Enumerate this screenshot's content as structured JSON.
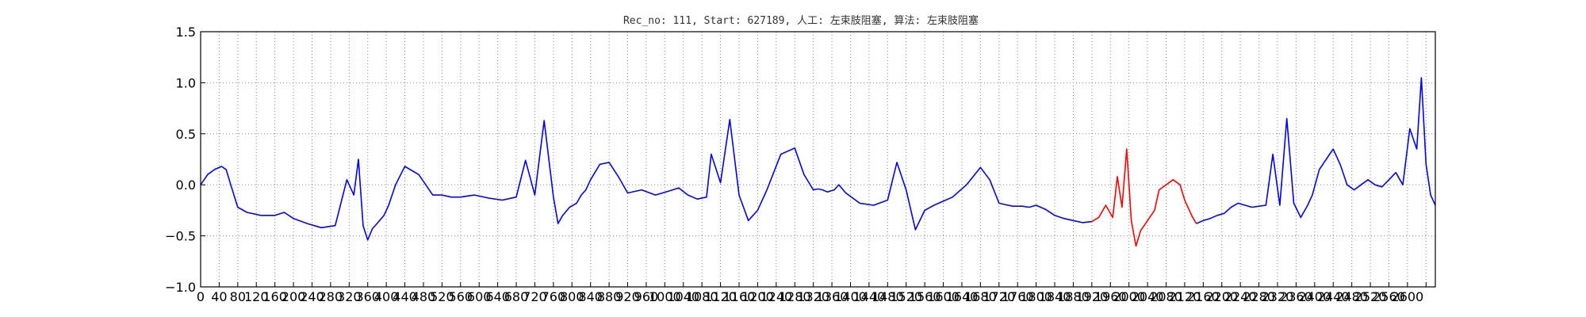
{
  "chart_data": {
    "type": "line",
    "title": "Rec_no: 111, Start: 627189, 人工: 左束肢阻塞, 算法: 左束肢阻塞",
    "xlabel": "",
    "ylabel": "",
    "xlim": [
      0,
      2660
    ],
    "ylim": [
      -1.0,
      1.5
    ],
    "grid": true,
    "yticks": [
      -1.0,
      -0.5,
      0.0,
      0.5,
      1.0,
      1.5
    ],
    "ytick_labels": [
      "−1.0",
      "−0.5",
      "0.0",
      "0.5",
      "1.0",
      "1.5"
    ],
    "xticks": [
      0,
      40,
      80,
      120,
      160,
      200,
      240,
      280,
      320,
      360,
      400,
      440,
      480,
      520,
      560,
      600,
      640,
      680,
      720,
      760,
      800,
      840,
      880,
      920,
      960,
      1000,
      1040,
      1080,
      1120,
      1160,
      1200,
      1240,
      1280,
      1320,
      1360,
      1400,
      1440,
      1480,
      1520,
      1560,
      1600,
      1640,
      1680,
      1720,
      1760,
      1800,
      1840,
      1880,
      1920,
      1960,
      2000,
      2040,
      2080,
      2120,
      2160,
      2200,
      2240,
      2280,
      2320,
      2360,
      2400,
      2440,
      2480,
      2520,
      2560,
      2600,
      2640
    ],
    "xtick_labels_shown": [
      "0",
      "40",
      "80",
      "120",
      "160",
      "200",
      "240",
      "280",
      "320",
      "360",
      "400",
      "440",
      "480",
      "520",
      "560",
      "600",
      "640",
      "680",
      "720",
      "760",
      "800",
      "840",
      "880",
      "920",
      "960",
      "1000",
      "1040",
      "1080",
      "1120",
      "1160",
      "1200",
      "1240",
      "1280",
      "1320",
      "1360",
      "1400",
      "1440",
      "1480",
      "1520",
      "1560",
      "1600",
      "1640",
      "1680",
      "1720",
      "1760",
      "1800",
      "1840",
      "1880",
      "1920",
      "1960",
      "2000",
      "2040",
      "2080",
      "2120",
      "2160",
      "2200",
      "2240",
      "2280",
      "2320",
      "2360",
      "2400",
      "2440",
      "2480",
      "2520",
      "2560",
      "2600"
    ],
    "colors": {
      "normal": "#0000ff",
      "highlight": "#ff0000",
      "grid": "#888888"
    },
    "series": [
      {
        "color": "#0000ff",
        "x": [
          0,
          15,
          30,
          45,
          55,
          65,
          80,
          100,
          130,
          160,
          180,
          200,
          230,
          260,
          290,
          315,
          330,
          340,
          350,
          360,
          370,
          380,
          395,
          405,
          420,
          440,
          470,
          500,
          520,
          540,
          560,
          590,
          620,
          650,
          680,
          700,
          720,
          740,
          760,
          770,
          780,
          795,
          810,
          820,
          830,
          840,
          860,
          880,
          900,
          920,
          950,
          980,
          1010,
          1030,
          1050,
          1070,
          1090,
          1100,
          1120,
          1140,
          1160,
          1180,
          1200,
          1220,
          1250,
          1280,
          1300,
          1320,
          1330,
          1340,
          1350,
          1365,
          1375,
          1390,
          1420,
          1450,
          1480,
          1500,
          1520,
          1540,
          1560,
          1580,
          1620,
          1650,
          1680,
          1700,
          1720,
          1740,
          1750,
          1760,
          1770,
          1785,
          1800,
          1820,
          1840,
          1860,
          1880,
          1900,
          1920
        ],
        "y": [
          0.0,
          0.1,
          0.15,
          0.18,
          0.15,
          0.0,
          -0.22,
          -0.27,
          -0.3,
          -0.3,
          -0.27,
          -0.33,
          -0.38,
          -0.42,
          -0.4,
          0.05,
          -0.1,
          0.25,
          -0.4,
          -0.54,
          -0.43,
          -0.38,
          -0.3,
          -0.2,
          0.0,
          0.18,
          0.1,
          -0.1,
          -0.1,
          -0.12,
          -0.12,
          -0.1,
          -0.13,
          -0.15,
          -0.12,
          0.24,
          -0.1,
          0.63,
          -0.12,
          -0.38,
          -0.3,
          -0.22,
          -0.18,
          -0.1,
          -0.05,
          0.05,
          0.2,
          0.22,
          0.08,
          -0.08,
          -0.05,
          -0.1,
          -0.06,
          -0.03,
          -0.1,
          -0.14,
          -0.12,
          0.3,
          0.02,
          0.64,
          -0.1,
          -0.35,
          -0.25,
          -0.05,
          0.3,
          0.36,
          0.1,
          -0.05,
          -0.04,
          -0.05,
          -0.07,
          -0.05,
          0.0,
          -0.08,
          -0.18,
          -0.2,
          -0.15,
          0.22,
          -0.05,
          -0.44,
          -0.25,
          -0.2,
          -0.12,
          0.0,
          0.17,
          0.05,
          -0.18,
          -0.2,
          -0.21,
          -0.21,
          -0.21,
          -0.22,
          -0.2,
          -0.24,
          -0.3,
          -0.33,
          -0.35,
          -0.37,
          -0.36
        ]
      },
      {
        "color": "#ff0000",
        "x": [
          1920,
          1935,
          1950,
          1965,
          1975,
          1985,
          1995,
          2005,
          2015,
          2025,
          2040,
          2055,
          2065,
          2080,
          2095,
          2110,
          2120,
          2135,
          2145
        ],
        "y": [
          -0.36,
          -0.32,
          -0.2,
          -0.32,
          0.08,
          -0.22,
          0.35,
          -0.35,
          -0.6,
          -0.45,
          -0.35,
          -0.25,
          -0.05,
          0.0,
          0.05,
          0.0,
          -0.15,
          -0.3,
          -0.38
        ]
      },
      {
        "color": "#0000ff",
        "x": [
          2145,
          2160,
          2175,
          2190,
          2205,
          2220,
          2235,
          2250,
          2265,
          2280,
          2295,
          2310,
          2325,
          2340,
          2355,
          2370,
          2385,
          2395,
          2410,
          2425,
          2440,
          2455,
          2470,
          2485,
          2500,
          2515,
          2530,
          2545,
          2560,
          2575,
          2590,
          2605,
          2620,
          2630,
          2640,
          2650,
          2660
        ],
        "y": [
          -0.38,
          -0.35,
          -0.33,
          -0.3,
          -0.28,
          -0.22,
          -0.18,
          -0.2,
          -0.22,
          -0.21,
          -0.2,
          0.3,
          -0.2,
          0.65,
          -0.18,
          -0.32,
          -0.2,
          -0.1,
          0.15,
          0.25,
          0.35,
          0.2,
          0.0,
          -0.05,
          0.0,
          0.05,
          0.0,
          -0.02,
          0.05,
          0.12,
          0.0,
          0.55,
          0.35,
          1.05,
          0.2,
          -0.1,
          -0.2
        ]
      }
    ]
  }
}
